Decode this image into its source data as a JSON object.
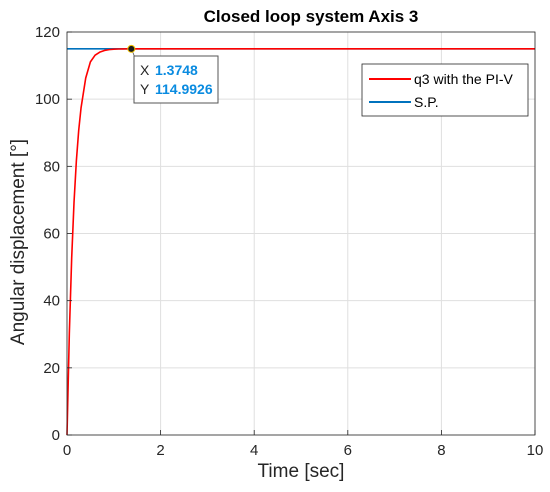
{
  "chart_data": {
    "type": "line",
    "title": "Closed loop system Axis 3",
    "xlabel": "Time [sec]",
    "ylabel": "Angular displacement [°]",
    "xlim": [
      0,
      10
    ],
    "ylim": [
      0,
      120
    ],
    "xticks": [
      0,
      2,
      4,
      6,
      8,
      10
    ],
    "yticks": [
      0,
      20,
      40,
      60,
      80,
      100,
      120
    ],
    "grid": true,
    "legend_location": "top-right",
    "series": [
      {
        "name": "q3 with the PI-V",
        "color": "#ff0000",
        "x": [
          0,
          0.05,
          0.1,
          0.15,
          0.2,
          0.25,
          0.3,
          0.4,
          0.5,
          0.6,
          0.7,
          0.8,
          0.9,
          1.0,
          1.1,
          1.2,
          1.3,
          1.3748,
          1.5,
          2,
          3,
          4,
          5,
          6,
          7,
          8,
          9,
          10
        ],
        "y": [
          0,
          30.3,
          52.7,
          69.3,
          81.6,
          90.7,
          97.4,
          106.3,
          111.1,
          113.1,
          114.0,
          114.5,
          114.75,
          114.88,
          114.94,
          114.97,
          114.985,
          114.9926,
          115.0,
          115.0,
          115.0,
          115.0,
          115.0,
          115.0,
          115.0,
          115.0,
          115.0,
          115.0
        ]
      },
      {
        "name": "S.P.",
        "color": "#0072bd",
        "x": [
          0,
          10
        ],
        "y": [
          115,
          115
        ]
      }
    ],
    "datatip": {
      "x_label": "X",
      "y_label": "Y",
      "x_value": "1.3748",
      "y_value": "114.9926",
      "point": [
        1.3748,
        114.9926
      ],
      "value_color": "#0a8be0"
    }
  }
}
